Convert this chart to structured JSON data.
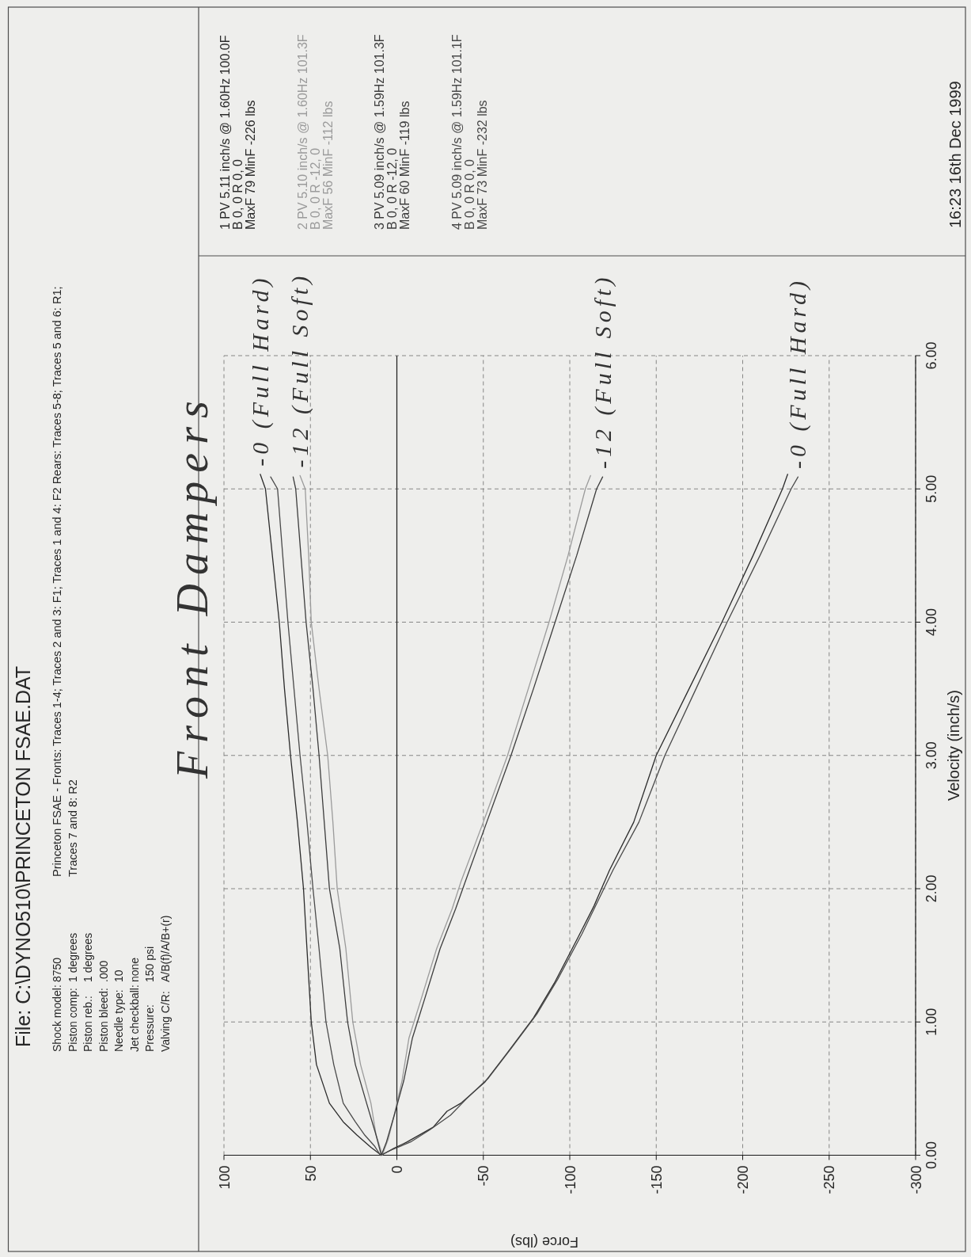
{
  "chart_data": {
    "type": "line",
    "title": "File: C:\\DYNO510\\PRINCETON FSAE.DAT",
    "xlabel": "Force (lbs)",
    "ylabel": "Velocity (inch/s)",
    "xlim": [
      100,
      -300
    ],
    "ylim": [
      0,
      6
    ],
    "xticks": [
      100,
      50,
      0,
      -50,
      -100,
      -150,
      -200,
      -250,
      -300
    ],
    "yticks": [
      {
        "value": 0,
        "label": "0.00"
      },
      {
        "value": 1,
        "label": "1.00"
      },
      {
        "value": 2,
        "label": "2.00"
      },
      {
        "value": 3,
        "label": "3.00"
      },
      {
        "value": 4,
        "label": "4.00"
      },
      {
        "value": 5,
        "label": "5.00"
      },
      {
        "value": 6,
        "label": "6.00"
      }
    ],
    "grid": true,
    "legend": "top left",
    "ref_lines": [
      {
        "axis": "x",
        "value": 0,
        "color": "#1a1a1a"
      }
    ],
    "series": [
      {
        "name": "1 PV 5.11 inch/s @ 1.60Hz 100.0F",
        "color": "#2b2b2b",
        "x": [
          79,
          76,
          72,
          68,
          65,
          61.5,
          57.5,
          54,
          52,
          49.5,
          46.5,
          39,
          31,
          23,
          15,
          9,
          2,
          -6,
          -21,
          -29,
          -37,
          -51,
          -64,
          -79,
          -91,
          -105,
          -114,
          -123,
          -137,
          -150,
          -169,
          -188,
          -206,
          -223,
          -226
        ],
        "values": [
          5.11,
          5.0,
          4.5,
          4.0,
          3.5,
          3.0,
          2.5,
          2.0,
          1.55,
          1.0,
          0.68,
          0.39,
          0.25,
          0.15,
          0.06,
          0.0,
          0.05,
          0.1,
          0.21,
          0.33,
          0.39,
          0.55,
          0.77,
          1.03,
          1.29,
          1.64,
          1.87,
          2.14,
          2.5,
          3.0,
          3.5,
          4.0,
          4.5,
          5.0,
          5.11
        ]
      },
      {
        "name": "2 PV 5.10 inch/s @ 1.60Hz 101.3F",
        "color": "#9b9b9b",
        "x": [
          56,
          53,
          51,
          49.5,
          45,
          40,
          37,
          34.5,
          29.5,
          25.5,
          21,
          15,
          12,
          9.5,
          8.5,
          5,
          1,
          -3,
          -7,
          -14,
          -23,
          -32,
          -37,
          -50,
          -64,
          -76,
          -88,
          -99,
          -109,
          -112
        ],
        "values": [
          5.1,
          5.0,
          4.5,
          4.0,
          3.5,
          3.0,
          2.5,
          2.0,
          1.55,
          1.0,
          0.68,
          0.39,
          0.15,
          0.05,
          0.0,
          0.12,
          0.33,
          0.56,
          0.88,
          1.17,
          1.55,
          1.85,
          2.05,
          2.5,
          3.0,
          3.5,
          4.0,
          4.5,
          5.0,
          5.1
        ]
      },
      {
        "name": "3 PV 5.09 inch/s @ 1.59Hz 101.3F",
        "color": "#3d3d3d",
        "x": [
          60,
          58.5,
          55.5,
          52.5,
          48.5,
          45,
          42,
          39,
          33,
          28.5,
          24,
          17.5,
          12,
          10,
          9,
          6,
          1.5,
          -4,
          -9,
          -16,
          -25,
          -34,
          -39.5,
          -52,
          -66,
          -79,
          -91.5,
          -104,
          -115.5,
          -119
        ],
        "values": [
          5.09,
          5.0,
          4.5,
          4.0,
          3.5,
          3.0,
          2.5,
          2.0,
          1.55,
          1.0,
          0.68,
          0.39,
          0.15,
          0.05,
          0.0,
          0.1,
          0.3,
          0.56,
          0.88,
          1.17,
          1.55,
          1.85,
          2.05,
          2.5,
          3.0,
          3.5,
          4.0,
          4.5,
          5.0,
          5.09
        ]
      },
      {
        "name": "4 PV 5.09 inch/s @ 1.59Hz 101.1F",
        "color": "#4a4a4a",
        "x": [
          73,
          69,
          66,
          63,
          59.5,
          56,
          52,
          48.5,
          45,
          41,
          36.5,
          31,
          24,
          18.5,
          13,
          9.5,
          3,
          -8,
          -19,
          -31,
          -40,
          -53,
          -66,
          -81,
          -93,
          -107,
          -116,
          -125,
          -140,
          -155,
          -173,
          -191,
          -210,
          -228,
          -232
        ],
        "values": [
          5.09,
          5.0,
          4.5,
          4.0,
          3.5,
          3.0,
          2.5,
          2.0,
          1.55,
          1.0,
          0.68,
          0.39,
          0.25,
          0.15,
          0.07,
          0.0,
          0.04,
          0.1,
          0.19,
          0.3,
          0.42,
          0.58,
          0.8,
          1.06,
          1.32,
          1.66,
          1.9,
          2.14,
          2.5,
          3.0,
          3.5,
          4.0,
          4.5,
          5.0,
          5.09
        ]
      }
    ],
    "annotations": [
      "Shock model:",
      "8750",
      "Piston comp:",
      "1 degrees",
      "Piston reb.:",
      "1 degrees",
      "Piston bleed:",
      ".000",
      "Needle type:",
      "10",
      "Jet checkball:",
      "none",
      "Pressure:",
      "150 psi",
      "Valving C/R:",
      "A/B(f)/A/B+(r)",
      "Princeton FSAE - Fronts: Traces 1-4; Traces 2 and 3: F1; Traces 1 and 4: F2 Rears: Traces 5-8; Traces 5 and 6: R1;",
      "Traces 7 and 8: R2",
      "B 0, 0 R 0, 0",
      "MaxF 79 MinF -226 lbs",
      "B 0, 0 R -12, 0",
      "MaxF 56 MinF -112 lbs",
      "B 0, 0 R -12, 0",
      "MaxF 60 MinF -119 lbs",
      "B 0, 0 R 0, 0",
      "MaxF 73 MinF -232 lbs",
      "16:23 16th Dec 1999",
      "Front Dampers",
      {
        "text": "-0 (Full Hard)",
        "x": 79,
        "y": 5.11
      },
      {
        "text": "-12 (Full Soft)",
        "x": 56,
        "y": 5.1
      },
      {
        "text": "-12 (Full Soft)",
        "x": -119,
        "y": 5.09
      },
      {
        "text": "-0 (Full Hard)",
        "x": -232,
        "y": 5.09
      }
    ]
  }
}
